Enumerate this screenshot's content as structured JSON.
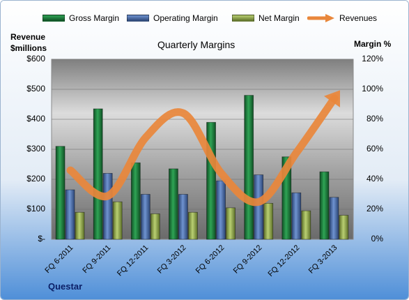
{
  "chart_data": {
    "type": "bar",
    "title": "Quarterly Margins",
    "company": "Questar",
    "y_left_label_line1": "Revenue",
    "y_left_label_line2": "$millions",
    "y_right_label": "Margin %",
    "categories": [
      "FQ 6-2011",
      "FQ 9-2011",
      "FQ 12-2011",
      "FQ 3-2012",
      "FQ 6-2012",
      "FQ 9-2012",
      "FQ 12-2012",
      "FQ 3-2013"
    ],
    "series": [
      {
        "name": "Gross Margin",
        "type": "bar",
        "axis": "right",
        "color": "#1e7a3c",
        "values": [
          62,
          87,
          51,
          47,
          78,
          96,
          55,
          45
        ]
      },
      {
        "name": "Operating Margin",
        "type": "bar",
        "axis": "right",
        "color": "#4a6fae",
        "values": [
          33,
          44,
          30,
          30,
          39,
          43,
          31,
          28
        ]
      },
      {
        "name": "Net Margin",
        "type": "bar",
        "axis": "right",
        "color": "#94ad4f",
        "values": [
          18,
          25,
          17,
          18,
          21,
          24,
          19,
          16
        ]
      },
      {
        "name": "Revenues",
        "type": "line",
        "axis": "left",
        "color": "#e9873b",
        "values": [
          230,
          145,
          340,
          420,
          220,
          125,
          290,
          470
        ]
      }
    ],
    "y_left_ticks": [
      "$-",
      "$100",
      "$200",
      "$300",
      "$400",
      "$500",
      "$600"
    ],
    "y_right_ticks": [
      "0%",
      "20%",
      "40%",
      "60%",
      "80%",
      "100%",
      "120%"
    ],
    "ylim_left": [
      0,
      600
    ],
    "ylim_right": [
      0,
      120
    ],
    "grid": true,
    "legend_position": "top"
  }
}
